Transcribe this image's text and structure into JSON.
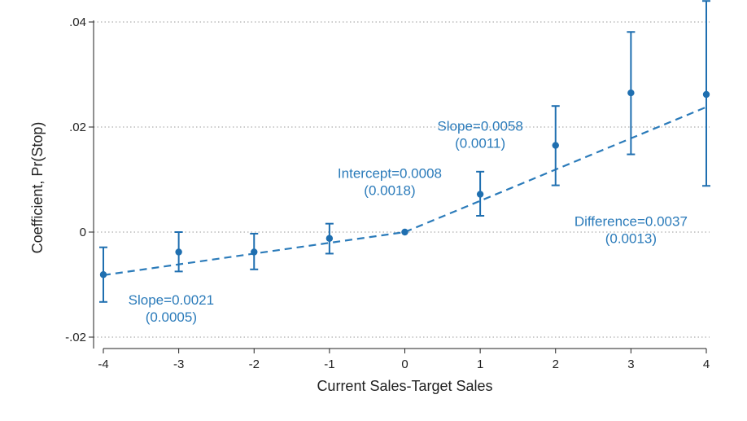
{
  "chart_data": {
    "type": "scatter",
    "xlabel": "Current Sales-Target Sales",
    "ylabel": "Coefficient, Pr(Stop)",
    "xlim": [
      -4,
      4
    ],
    "ylim": [
      -0.02,
      0.04
    ],
    "x_ticks": [
      -4,
      -3,
      -2,
      -1,
      0,
      1,
      2,
      3,
      4
    ],
    "x_tick_labels": [
      "-4",
      "-3",
      "-2",
      "-1",
      "0",
      "1",
      "2",
      "3",
      "4"
    ],
    "y_ticks": [
      -0.02,
      0,
      0.02,
      0.04
    ],
    "y_tick_labels": [
      "-.02",
      "0",
      ".02",
      ".04"
    ],
    "grid": "horizontal dotted",
    "color": "#1f6fb0",
    "annotation_color": "#2b7bba",
    "series": [
      {
        "points": [
          {
            "x": -4,
            "y": -0.0081,
            "lo": -0.0133,
            "hi": -0.0029
          },
          {
            "x": -3,
            "y": -0.0038,
            "lo": -0.0075,
            "hi": 0.0
          },
          {
            "x": -2,
            "y": -0.0038,
            "lo": -0.0071,
            "hi": -0.0003
          },
          {
            "x": -1,
            "y": -0.0012,
            "lo": -0.0041,
            "hi": 0.0016
          },
          {
            "x": 0,
            "y": 0.0
          },
          {
            "x": 1,
            "y": 0.0072,
            "lo": 0.0031,
            "hi": 0.0115
          },
          {
            "x": 2,
            "y": 0.0165,
            "lo": 0.0089,
            "hi": 0.024
          },
          {
            "x": 3,
            "y": 0.0265,
            "lo": 0.0148,
            "hi": 0.0381
          },
          {
            "x": 4,
            "y": 0.0262,
            "lo": 0.0088,
            "hi": 0.044
          }
        ]
      }
    ],
    "fit_lines": [
      {
        "x": [
          -4,
          0
        ],
        "y": [
          -0.0082,
          0.0
        ],
        "style": "dashed"
      },
      {
        "x": [
          0,
          4
        ],
        "y": [
          0.0,
          0.0238
        ],
        "style": "dashed"
      }
    ],
    "annotations": [
      {
        "lines": [
          "Slope=0.0021",
          "(0.0005)"
        ],
        "x": -3.1,
        "y": -0.0138
      },
      {
        "lines": [
          "Intercept=0.0008",
          "(0.0018)"
        ],
        "x": -0.2,
        "y": 0.0103
      },
      {
        "lines": [
          "Slope=0.0058",
          "(0.0011)"
        ],
        "x": 1.0,
        "y": 0.0193
      },
      {
        "lines": [
          "Difference=0.0037",
          "(0.0013)"
        ],
        "x": 3.0,
        "y": 0.0012
      }
    ]
  }
}
